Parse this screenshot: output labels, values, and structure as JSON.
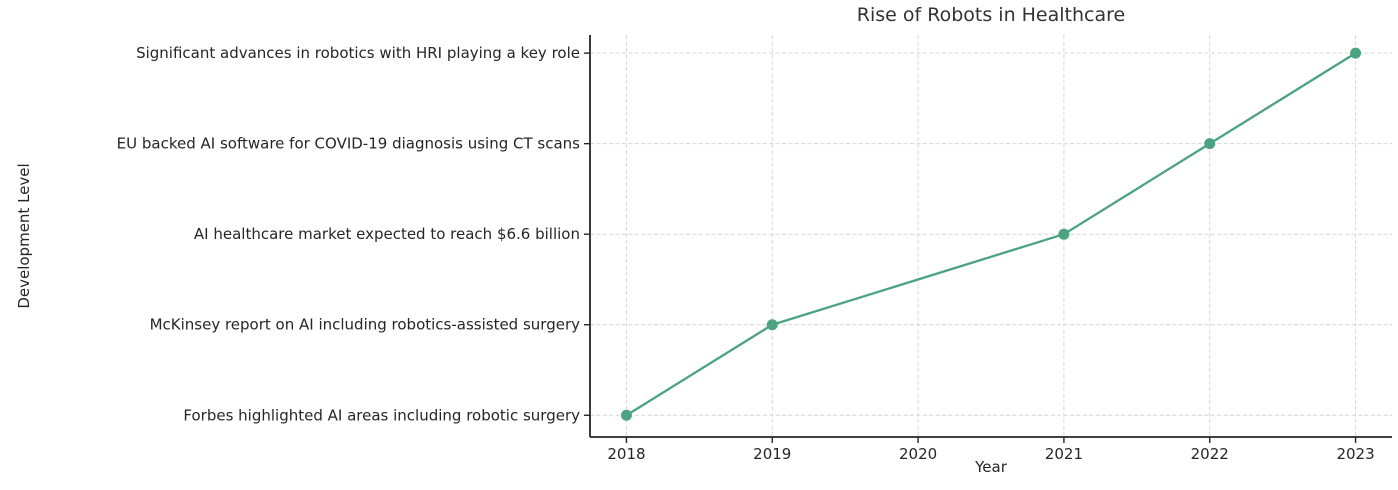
{
  "chart_data": {
    "type": "line",
    "title": "Rise of Robots in Healthcare",
    "xlabel": "Year",
    "ylabel": "Development Level",
    "x_ticks": [
      2018,
      2019,
      2020,
      2021,
      2022,
      2023
    ],
    "y_tick_labels": [
      "Forbes highlighted AI areas including robotic surgery",
      "McKinsey report on AI including robotics-assisted surgery",
      "AI healthcare market expected to reach $6.6 billion",
      "EU backed AI software for COVID-19 diagnosis using CT scans",
      "Significant advances in robotics with HRI playing a key role"
    ],
    "series": [
      {
        "name": "healthcare-robotics-development",
        "x": [
          2018,
          2019,
          2021,
          2022,
          2023
        ],
        "y": [
          0,
          1,
          2,
          3,
          4
        ]
      }
    ],
    "xlim": [
      2017.75,
      2023.25
    ],
    "ylim": [
      -0.24,
      4.2
    ],
    "grid": true,
    "grid_style": "dashed",
    "legend_position": "none",
    "marker": "o",
    "colors": {
      "line": "#4ca381",
      "marker": "#4ca381",
      "grid": "#d6d6d6",
      "axis": "#262626",
      "tick_text": "#262626",
      "title_text": "#333333"
    }
  }
}
